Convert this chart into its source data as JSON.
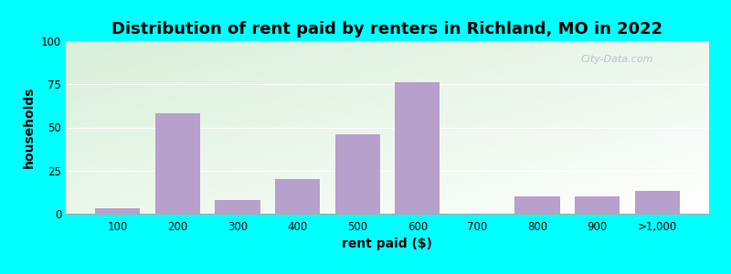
{
  "title": "Distribution of rent paid by renters in Richland, MO in 2022",
  "xlabel": "rent paid ($)",
  "ylabel": "households",
  "categories": [
    "100",
    "200",
    "300",
    "400",
    "500",
    "600",
    "700",
    "800",
    "900",
    ">1,000"
  ],
  "values": [
    3,
    58,
    8,
    20,
    46,
    76,
    0,
    10,
    10,
    13
  ],
  "bar_color": "#b8a0cc",
  "ylim": [
    0,
    100
  ],
  "yticks": [
    0,
    25,
    50,
    75,
    100
  ],
  "bg_outer": "#00ffff",
  "bg_grad_topleft": "#d8efd8",
  "bg_grad_bottomright": "#ffffff",
  "watermark": "City-Data.com",
  "title_fontsize": 13,
  "axis_label_fontsize": 10,
  "tick_fontsize": 8.5
}
